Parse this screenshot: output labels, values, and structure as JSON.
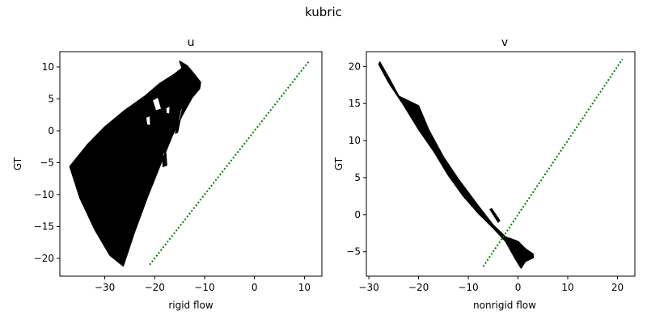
{
  "figure": {
    "suptitle": "kubric"
  },
  "colors": {
    "cloud": "#000000",
    "reference_line": "#008000",
    "axes": "#000000",
    "background": "#ffffff"
  },
  "chart_data": [
    {
      "type": "scatter",
      "title": "u",
      "xlabel": "rigid flow",
      "ylabel": "GT",
      "xlim": [
        -39,
        13.5
      ],
      "ylim": [
        -22.8,
        12.4
      ],
      "xticks": [
        -30,
        -20,
        -10,
        0,
        10
      ],
      "yticks": [
        -20,
        -15,
        -10,
        -5,
        0,
        5,
        10
      ],
      "grid": false,
      "series": [
        {
          "style": "dense black point cloud",
          "outline": [
            [
              -37,
              -5.6
            ],
            [
              -33.5,
              -2.2
            ],
            [
              -30,
              0.6
            ],
            [
              -26,
              3.2
            ],
            [
              -22,
              5.4
            ],
            [
              -19,
              7.4
            ],
            [
              -16,
              8.9
            ],
            [
              -14.5,
              9.8
            ],
            [
              -15,
              10.9
            ],
            [
              -13.5,
              10.2
            ],
            [
              -12,
              8.8
            ],
            [
              -10.8,
              7.6
            ],
            [
              -11,
              6.6
            ],
            [
              -12.5,
              5.2
            ],
            [
              -14.5,
              2.4
            ],
            [
              -16.5,
              -0.8
            ],
            [
              -19,
              -5.6
            ],
            [
              -21.5,
              -10.5
            ],
            [
              -24,
              -15.8
            ],
            [
              -26.3,
              -21.2
            ],
            [
              -29,
              -19.5
            ],
            [
              -32,
              -15.5
            ],
            [
              -35,
              -10.5
            ],
            [
              -37,
              -5.6
            ]
          ],
          "holes": [
            [
              [
                -20.5,
                4.8
              ],
              [
                -19.3,
                5.3
              ],
              [
                -18.6,
                3.4
              ],
              [
                -19.8,
                3.1
              ]
            ],
            [
              [
                -21.8,
                2.1
              ],
              [
                -20.9,
                2.4
              ],
              [
                -20.8,
                0.8
              ],
              [
                -21.6,
                0.9
              ]
            ],
            [
              [
                -17.8,
                3.6
              ],
              [
                -16.9,
                3.9
              ],
              [
                -17.0,
                2.6
              ],
              [
                -17.7,
                2.7
              ]
            ],
            [
              [
                -18.4,
                -3.6
              ],
              [
                -17.8,
                -3.3
              ],
              [
                -17.6,
                -5.4
              ],
              [
                -18.3,
                -5.6
              ]
            ],
            [
              [
                -14.8,
                3.4
              ],
              [
                -14.4,
                3.6
              ],
              [
                -15.4,
                -0.2
              ],
              [
                -15.8,
                -0.4
              ]
            ]
          ]
        },
        {
          "name": "",
          "style": "green dotted line y = x",
          "x": [
            -21,
            11
          ],
          "y": [
            -21,
            11
          ]
        }
      ]
    },
    {
      "type": "scatter",
      "title": "v",
      "xlabel": "nonrigid flow",
      "ylabel": "GT",
      "xlim": [
        -30.5,
        23.5
      ],
      "ylim": [
        -8.3,
        22.0
      ],
      "xticks": [
        -30,
        -20,
        -10,
        0,
        10,
        20
      ],
      "yticks": [
        -5,
        0,
        5,
        10,
        15,
        20
      ],
      "grid": false,
      "series": [
        {
          "style": "dense black point cloud",
          "outline": [
            [
              -27.8,
              20.6
            ],
            [
              -26,
              18.5
            ],
            [
              -24,
              16.0
            ],
            [
              -20,
              14.7
            ],
            [
              -18,
              11.5
            ],
            [
              -15,
              7.8
            ],
            [
              -12,
              4.8
            ],
            [
              -8,
              1.2
            ],
            [
              -5,
              -1.4
            ],
            [
              -2.5,
              -3.0
            ],
            [
              0,
              -3.6
            ],
            [
              1.5,
              -4.6
            ],
            [
              3,
              -5.3
            ],
            [
              3.1,
              -5.8
            ],
            [
              1.5,
              -6.3
            ],
            [
              0.6,
              -7.2
            ],
            [
              -0.5,
              -6.0
            ],
            [
              -2.5,
              -3.6
            ],
            [
              -5,
              -1.8
            ],
            [
              -8,
              0.2
            ],
            [
              -11,
              2.5
            ],
            [
              -14,
              5.3
            ],
            [
              -17,
              8.6
            ],
            [
              -20,
              11.5
            ],
            [
              -23,
              14.8
            ],
            [
              -26,
              17.8
            ],
            [
              -28,
              20.3
            ],
            [
              -27.8,
              20.6
            ]
          ],
          "holes": [
            [
              [
                -5.6,
                0.7
              ],
              [
                -5.3,
                0.8
              ],
              [
                -3.7,
                -0.8
              ],
              [
                -4.0,
                -1.0
              ]
            ]
          ]
        },
        {
          "name": "",
          "style": "green dotted line y = x",
          "x": [
            -7,
            21
          ],
          "y": [
            -7,
            21
          ]
        }
      ]
    }
  ]
}
